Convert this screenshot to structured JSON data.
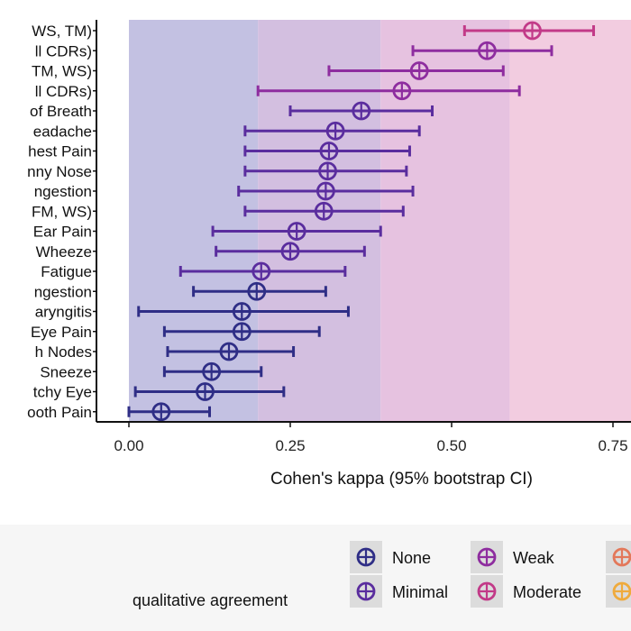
{
  "chart_data": {
    "type": "errorbar",
    "xlabel": "Cohen's kappa (95% bootstrap CI)",
    "xlim": [
      -0.05,
      0.78
    ],
    "xticks": [
      0,
      0.25,
      0.5,
      0.75
    ],
    "xtick_labels": [
      "0.00",
      "0.25",
      "0.50",
      "0.75"
    ],
    "bands": [
      {
        "category": "None",
        "from": 0.0,
        "to": 0.2,
        "color": "#c3c1e2"
      },
      {
        "category": "Minimal",
        "from": 0.2,
        "to": 0.39,
        "color": "#d3bfe0"
      },
      {
        "category": "Weak",
        "from": 0.39,
        "to": 0.59,
        "color": "#e6c2e0"
      },
      {
        "category": "Moderate",
        "from": 0.59,
        "to": 0.8,
        "color": "#f2cce0"
      }
    ],
    "rows": [
      {
        "label": "WS, TM)",
        "kappa": 0.625,
        "lo": 0.52,
        "hi": 0.72,
        "category": "Moderate"
      },
      {
        "label": "ll CDRs)",
        "kappa": 0.555,
        "lo": 0.44,
        "hi": 0.655,
        "category": "Weak"
      },
      {
        "label": "TM, WS)",
        "kappa": 0.45,
        "lo": 0.31,
        "hi": 0.58,
        "category": "Weak"
      },
      {
        "label": "ll CDRs)",
        "kappa": 0.423,
        "lo": 0.2,
        "hi": 0.605,
        "category": "Weak"
      },
      {
        "label": "of Breath",
        "kappa": 0.36,
        "lo": 0.25,
        "hi": 0.47,
        "category": "Minimal"
      },
      {
        "label": "eadache",
        "kappa": 0.32,
        "lo": 0.18,
        "hi": 0.45,
        "category": "Minimal"
      },
      {
        "label": "hest Pain",
        "kappa": 0.31,
        "lo": 0.18,
        "hi": 0.435,
        "category": "Minimal"
      },
      {
        "label": "nny Nose",
        "kappa": 0.308,
        "lo": 0.18,
        "hi": 0.43,
        "category": "Minimal"
      },
      {
        "label": "ngestion",
        "kappa": 0.305,
        "lo": 0.17,
        "hi": 0.44,
        "category": "Minimal"
      },
      {
        "label": "FM, WS)",
        "kappa": 0.302,
        "lo": 0.18,
        "hi": 0.425,
        "category": "Minimal"
      },
      {
        "label": "Ear Pain",
        "kappa": 0.26,
        "lo": 0.13,
        "hi": 0.39,
        "category": "Minimal"
      },
      {
        "label": "Wheeze",
        "kappa": 0.25,
        "lo": 0.135,
        "hi": 0.365,
        "category": "Minimal"
      },
      {
        "label": "Fatigue",
        "kappa": 0.205,
        "lo": 0.08,
        "hi": 0.335,
        "category": "Minimal"
      },
      {
        "label": "ngestion",
        "kappa": 0.198,
        "lo": 0.1,
        "hi": 0.305,
        "category": "None"
      },
      {
        "label": "aryngitis",
        "kappa": 0.175,
        "lo": 0.015,
        "hi": 0.34,
        "category": "None"
      },
      {
        "label": "Eye Pain",
        "kappa": 0.175,
        "lo": 0.055,
        "hi": 0.295,
        "category": "None"
      },
      {
        "label": "h Nodes",
        "kappa": 0.155,
        "lo": 0.06,
        "hi": 0.255,
        "category": "None"
      },
      {
        "label": "Sneeze",
        "kappa": 0.128,
        "lo": 0.055,
        "hi": 0.205,
        "category": "None"
      },
      {
        "label": "tchy Eye",
        "kappa": 0.118,
        "lo": 0.01,
        "hi": 0.24,
        "category": "None"
      },
      {
        "label": "ooth Pain",
        "kappa": 0.05,
        "lo": 0.0,
        "hi": 0.125,
        "category": "None"
      }
    ],
    "legend": {
      "title": "qualitative agreement",
      "items": [
        {
          "label": "None",
          "color": "#2f2e86"
        },
        {
          "label": "Minimal",
          "color": "#5a2d9e"
        },
        {
          "label": "Weak",
          "color": "#8e2d9f"
        },
        {
          "label": "Moderate",
          "color": "#c23a88"
        },
        {
          "label": "",
          "color": "#e3785a"
        },
        {
          "label": "",
          "color": "#efaa3c"
        }
      ]
    },
    "category_colors": {
      "None": "#2f2e86",
      "Minimal": "#5a2d9e",
      "Weak": "#8e2d9f",
      "Moderate": "#c23a88"
    }
  }
}
